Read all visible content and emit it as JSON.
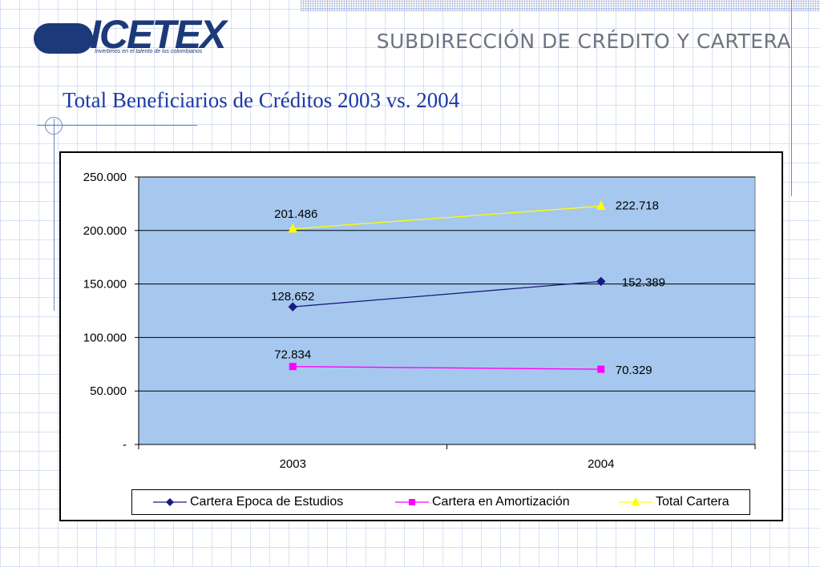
{
  "header": {
    "logo_text": "ICETEX",
    "logo_tagline": "Invertimos en el talento de los colombianos",
    "department": "SUBDIRECCIÓN DE CRÉDITO Y CARTERA"
  },
  "slide_title": "Total Beneficiarios de Créditos 2003 vs. 2004",
  "chart_data": {
    "type": "line",
    "title": "",
    "xlabel": "",
    "ylabel": "",
    "categories": [
      "2003",
      "2004"
    ],
    "ylim": [
      0,
      250000
    ],
    "yticks": [
      0,
      50000,
      100000,
      150000,
      200000,
      250000
    ],
    "ytick_labels": [
      "-",
      "50.000",
      "100.000",
      "150.000",
      "200.000",
      "250.000"
    ],
    "grid": true,
    "plot_background": "#a6c8ee",
    "legend_position": "bottom",
    "series": [
      {
        "name": "Cartera Epoca de Estudios",
        "values": [
          128652,
          152389
        ],
        "labels": [
          "128.652",
          "152.389"
        ],
        "color": "#1a1a80",
        "marker": "diamond"
      },
      {
        "name": "Cartera en Amortización",
        "values": [
          72834,
          70329
        ],
        "labels": [
          "72.834",
          "70.329"
        ],
        "color": "#ff00ff",
        "marker": "square"
      },
      {
        "name": "Total Cartera",
        "values": [
          201486,
          222718
        ],
        "labels": [
          "201.486",
          "222.718"
        ],
        "color": "#ffff00",
        "marker": "triangle"
      }
    ]
  }
}
